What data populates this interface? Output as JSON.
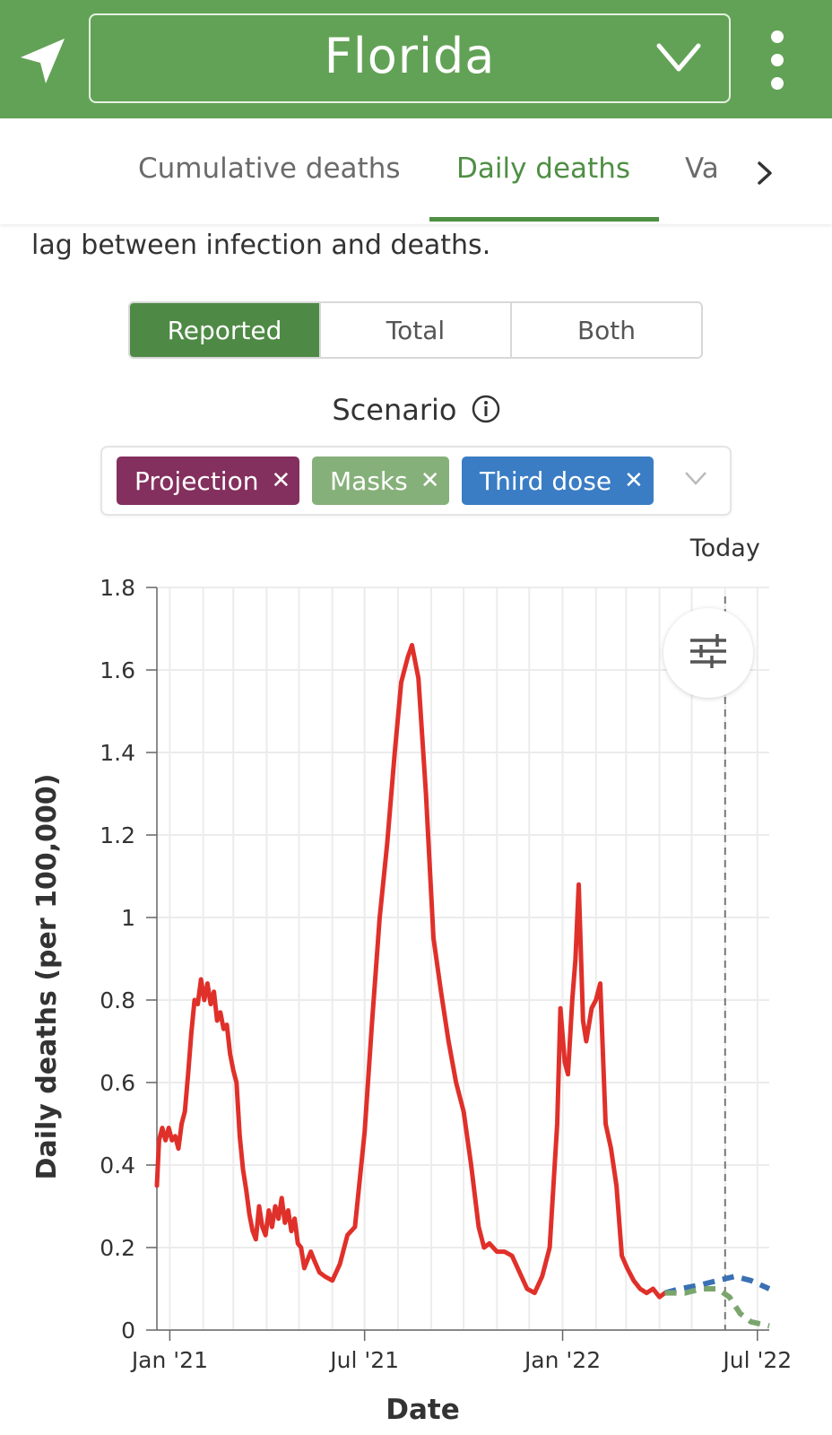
{
  "header": {
    "state": "Florida",
    "background": "#62a256"
  },
  "tabs": [
    {
      "label": "Cumulative deaths",
      "active": false
    },
    {
      "label": "Daily deaths",
      "active": true
    },
    {
      "label": "Va",
      "active": false
    }
  ],
  "intro_text": "lag between infection and deaths.",
  "segmented": {
    "options": [
      "Reported",
      "Total",
      "Both"
    ],
    "selected": "Reported"
  },
  "scenario": {
    "title": "Scenario",
    "chips": [
      {
        "label": "Projection",
        "color": "#84305e"
      },
      {
        "label": "Masks",
        "color": "#86b07a"
      },
      {
        "label": "Third dose",
        "color": "#3a7dc4"
      }
    ]
  },
  "chart_data": {
    "type": "line",
    "xlabel": "Date",
    "ylabel": "Daily deaths (per 100,000)",
    "ylim": [
      0,
      1.8
    ],
    "yticks": [
      "0",
      "0.2",
      "0.4",
      "0.6",
      "0.8",
      "1",
      "1.2",
      "1.4",
      "1.6",
      "1.8"
    ],
    "xticks": [
      {
        "label": "Jan '21",
        "date": "2021-01-01"
      },
      {
        "label": "Jul '21",
        "date": "2021-07-01"
      },
      {
        "label": "Jan '22",
        "date": "2022-01-01"
      },
      {
        "label": "Jul '22",
        "date": "2022-07-01"
      }
    ],
    "xlim": [
      "2020-12-20",
      "2022-07-12"
    ],
    "grid": true,
    "today_label": "Today",
    "today_date": "2022-06-01",
    "series": [
      {
        "name": "Reported",
        "color": "#e0302a",
        "style": "solid",
        "points": [
          [
            "2020-12-20",
            0.35
          ],
          [
            "2020-12-22",
            0.46
          ],
          [
            "2020-12-25",
            0.49
          ],
          [
            "2020-12-28",
            0.46
          ],
          [
            "2020-12-31",
            0.49
          ],
          [
            "2021-01-03",
            0.46
          ],
          [
            "2021-01-06",
            0.47
          ],
          [
            "2021-01-09",
            0.44
          ],
          [
            "2021-01-12",
            0.5
          ],
          [
            "2021-01-15",
            0.53
          ],
          [
            "2021-01-18",
            0.62
          ],
          [
            "2021-01-21",
            0.72
          ],
          [
            "2021-01-24",
            0.8
          ],
          [
            "2021-01-27",
            0.79
          ],
          [
            "2021-01-30",
            0.85
          ],
          [
            "2021-02-02",
            0.8
          ],
          [
            "2021-02-05",
            0.84
          ],
          [
            "2021-02-08",
            0.79
          ],
          [
            "2021-02-11",
            0.82
          ],
          [
            "2021-02-14",
            0.75
          ],
          [
            "2021-02-17",
            0.77
          ],
          [
            "2021-02-20",
            0.73
          ],
          [
            "2021-02-23",
            0.74
          ],
          [
            "2021-02-26",
            0.67
          ],
          [
            "2021-03-01",
            0.63
          ],
          [
            "2021-03-04",
            0.6
          ],
          [
            "2021-03-07",
            0.47
          ],
          [
            "2021-03-10",
            0.39
          ],
          [
            "2021-03-13",
            0.34
          ],
          [
            "2021-03-16",
            0.28
          ],
          [
            "2021-03-19",
            0.24
          ],
          [
            "2021-03-22",
            0.22
          ],
          [
            "2021-03-25",
            0.3
          ],
          [
            "2021-03-28",
            0.25
          ],
          [
            "2021-03-31",
            0.23
          ],
          [
            "2021-04-03",
            0.29
          ],
          [
            "2021-04-06",
            0.25
          ],
          [
            "2021-04-09",
            0.3
          ],
          [
            "2021-04-12",
            0.27
          ],
          [
            "2021-04-15",
            0.32
          ],
          [
            "2021-04-18",
            0.26
          ],
          [
            "2021-04-21",
            0.29
          ],
          [
            "2021-04-24",
            0.24
          ],
          [
            "2021-04-27",
            0.27
          ],
          [
            "2021-04-30",
            0.21
          ],
          [
            "2021-05-03",
            0.2
          ],
          [
            "2021-05-06",
            0.15
          ],
          [
            "2021-05-09",
            0.17
          ],
          [
            "2021-05-12",
            0.19
          ],
          [
            "2021-05-15",
            0.17
          ],
          [
            "2021-05-20",
            0.14
          ],
          [
            "2021-05-25",
            0.13
          ],
          [
            "2021-06-01",
            0.12
          ],
          [
            "2021-06-08",
            0.16
          ],
          [
            "2021-06-15",
            0.23
          ],
          [
            "2021-06-22",
            0.25
          ],
          [
            "2021-07-01",
            0.48
          ],
          [
            "2021-07-08",
            0.75
          ],
          [
            "2021-07-15",
            1.0
          ],
          [
            "2021-07-22",
            1.18
          ],
          [
            "2021-07-29",
            1.4
          ],
          [
            "2021-08-04",
            1.57
          ],
          [
            "2021-08-10",
            1.63
          ],
          [
            "2021-08-14",
            1.66
          ],
          [
            "2021-08-20",
            1.58
          ],
          [
            "2021-08-27",
            1.3
          ],
          [
            "2021-09-03",
            0.95
          ],
          [
            "2021-09-10",
            0.82
          ],
          [
            "2021-09-17",
            0.7
          ],
          [
            "2021-09-24",
            0.6
          ],
          [
            "2021-10-01",
            0.53
          ],
          [
            "2021-10-08",
            0.4
          ],
          [
            "2021-10-15",
            0.25
          ],
          [
            "2021-10-20",
            0.2
          ],
          [
            "2021-10-25",
            0.21
          ],
          [
            "2021-11-01",
            0.19
          ],
          [
            "2021-11-08",
            0.19
          ],
          [
            "2021-11-15",
            0.18
          ],
          [
            "2021-11-22",
            0.14
          ],
          [
            "2021-11-29",
            0.1
          ],
          [
            "2021-12-06",
            0.09
          ],
          [
            "2021-12-13",
            0.13
          ],
          [
            "2021-12-20",
            0.2
          ],
          [
            "2021-12-27",
            0.5
          ],
          [
            "2021-12-30",
            0.78
          ],
          [
            "2022-01-03",
            0.65
          ],
          [
            "2022-01-06",
            0.62
          ],
          [
            "2022-01-10",
            0.8
          ],
          [
            "2022-01-13",
            0.9
          ],
          [
            "2022-01-16",
            1.08
          ],
          [
            "2022-01-20",
            0.75
          ],
          [
            "2022-01-23",
            0.7
          ],
          [
            "2022-01-28",
            0.78
          ],
          [
            "2022-02-01",
            0.8
          ],
          [
            "2022-02-05",
            0.84
          ],
          [
            "2022-02-10",
            0.5
          ],
          [
            "2022-02-15",
            0.44
          ],
          [
            "2022-02-20",
            0.35
          ],
          [
            "2022-02-25",
            0.18
          ],
          [
            "2022-03-02",
            0.15
          ],
          [
            "2022-03-08",
            0.12
          ],
          [
            "2022-03-14",
            0.1
          ],
          [
            "2022-03-20",
            0.09
          ],
          [
            "2022-03-26",
            0.1
          ],
          [
            "2022-04-01",
            0.08
          ],
          [
            "2022-04-06",
            0.09
          ]
        ]
      },
      {
        "name": "Third dose",
        "color": "#3a70b4",
        "style": "dashed",
        "points": [
          [
            "2022-04-06",
            0.09
          ],
          [
            "2022-04-20",
            0.1
          ],
          [
            "2022-05-10",
            0.11
          ],
          [
            "2022-05-25",
            0.12
          ],
          [
            "2022-06-10",
            0.13
          ],
          [
            "2022-06-25",
            0.12
          ],
          [
            "2022-07-12",
            0.1
          ]
        ]
      },
      {
        "name": "Masks",
        "color": "#7aa66e",
        "style": "dashed",
        "points": [
          [
            "2022-04-06",
            0.09
          ],
          [
            "2022-04-25",
            0.09
          ],
          [
            "2022-05-10",
            0.1
          ],
          [
            "2022-05-25",
            0.1
          ],
          [
            "2022-06-05",
            0.08
          ],
          [
            "2022-06-15",
            0.04
          ],
          [
            "2022-06-25",
            0.02
          ],
          [
            "2022-07-12",
            0.01
          ]
        ]
      }
    ]
  }
}
